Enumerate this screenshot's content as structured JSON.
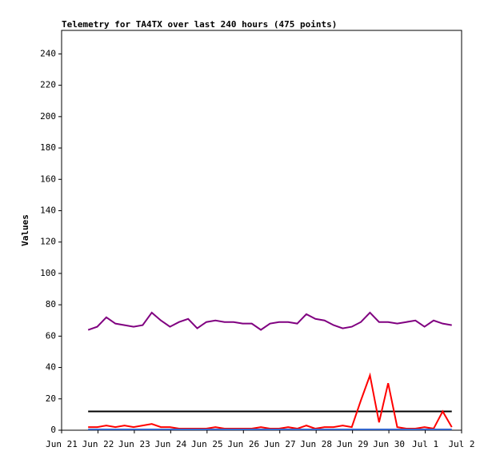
{
  "chart_data": {
    "type": "line",
    "title": "Telemetry for TA4TX over last 240 hours (475 points)",
    "ylabel": "Values",
    "x": [
      0.73,
      0.98,
      1.23,
      1.48,
      1.73,
      1.98,
      2.23,
      2.48,
      2.73,
      2.98,
      3.23,
      3.48,
      3.73,
      3.98,
      4.23,
      4.48,
      4.73,
      4.98,
      5.23,
      5.48,
      5.73,
      5.98,
      6.23,
      6.48,
      6.73,
      6.98,
      7.23,
      7.48,
      7.73,
      7.98,
      8.23,
      8.48,
      8.73,
      8.98,
      9.23,
      9.48,
      9.73,
      9.98,
      10.23,
      10.48,
      10.73
    ],
    "series": [
      {
        "color": "#800080",
        "values": [
          64,
          66,
          72,
          68,
          67,
          66,
          67,
          75,
          70,
          66,
          69,
          71,
          65,
          69,
          70,
          69,
          69,
          68,
          68,
          64,
          68,
          69,
          69,
          68,
          74,
          71,
          70,
          67,
          65,
          66,
          69,
          75,
          69,
          69,
          68,
          69,
          70,
          66,
          70,
          68,
          67
        ]
      },
      {
        "color": "#000000",
        "values": [
          12,
          12,
          12,
          12,
          12,
          12,
          12,
          12,
          12,
          12,
          12,
          12,
          12,
          12,
          12,
          12,
          12,
          12,
          12,
          12,
          12,
          12,
          12,
          12,
          12,
          12,
          12,
          12,
          12,
          12,
          12,
          12,
          12,
          12,
          12,
          12,
          12,
          12,
          12,
          12,
          12
        ]
      },
      {
        "color": "#ff0000",
        "values": [
          2,
          2,
          3,
          2,
          3,
          2,
          3,
          4,
          2,
          2,
          1,
          1,
          1,
          1,
          2,
          1,
          1,
          1,
          1,
          2,
          1,
          1,
          2,
          1,
          3,
          1,
          2,
          2,
          3,
          2,
          19,
          35,
          5,
          30,
          2,
          1,
          1,
          2,
          1,
          12,
          2
        ]
      },
      {
        "color": "#3366cc",
        "values": [
          0.5,
          0.5,
          0.5,
          0.5,
          0.5,
          0.5,
          0.5,
          0.5,
          0.5,
          0.5,
          0.5,
          0.5,
          0.5,
          0.5,
          0.5,
          0.5,
          0.5,
          0.5,
          0.5,
          0.5,
          0.5,
          0.5,
          0.5,
          0.5,
          0.5,
          0.5,
          0.5,
          0.5,
          0.5,
          0.5,
          0.5,
          0.5,
          0.5,
          0.5,
          0.5,
          0.5,
          0.5,
          0.5,
          0.5,
          0.5,
          0.5
        ]
      }
    ],
    "xlim": [
      0,
      11
    ],
    "xticks": [
      {
        "value": 0,
        "label": "Jun 21"
      },
      {
        "value": 1,
        "label": "Jun 22"
      },
      {
        "value": 2,
        "label": "Jun 23"
      },
      {
        "value": 3,
        "label": "Jun 24"
      },
      {
        "value": 4,
        "label": "Jun 25"
      },
      {
        "value": 5,
        "label": "Jun 26"
      },
      {
        "value": 6,
        "label": "Jun 27"
      },
      {
        "value": 7,
        "label": "Jun 28"
      },
      {
        "value": 8,
        "label": "Jun 29"
      },
      {
        "value": 9,
        "label": "Jun 30"
      },
      {
        "value": 10,
        "label": "Jul 1"
      },
      {
        "value": 11,
        "label": "Jul 2"
      }
    ],
    "ylim": [
      0,
      255
    ],
    "yticks": [
      0,
      20,
      40,
      60,
      80,
      100,
      120,
      140,
      160,
      180,
      200,
      220,
      240
    ],
    "grid": false
  }
}
